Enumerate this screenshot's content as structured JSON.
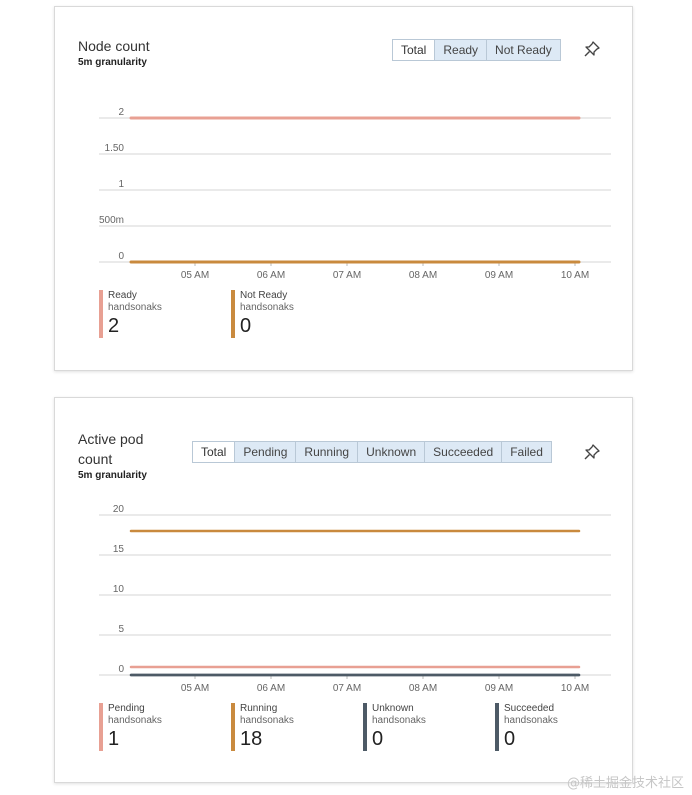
{
  "node_count": {
    "title": "Node count",
    "granularity": "5m granularity",
    "tabs": [
      {
        "label": "Total",
        "active": true
      },
      {
        "label": "Ready",
        "active": false
      },
      {
        "label": "Not Ready",
        "active": false
      }
    ],
    "chart_data": {
      "type": "line",
      "x": [
        "05 AM",
        "06 AM",
        "07 AM",
        "08 AM",
        "09 AM",
        "10 AM"
      ],
      "y_ticks": [
        "2",
        "1.50",
        "1",
        "500m",
        "0"
      ],
      "ylim": [
        0,
        2
      ],
      "series": [
        {
          "name": "Ready",
          "color": "#e8a093",
          "values": [
            2,
            2,
            2,
            2,
            2,
            2
          ]
        },
        {
          "name": "Not Ready",
          "color": "#c98a3e",
          "values": [
            0,
            0,
            0,
            0,
            0,
            0
          ]
        }
      ]
    },
    "legend": [
      {
        "name": "Ready",
        "sub": "handsonaks",
        "value": "2",
        "color": "#e8a093"
      },
      {
        "name": "Not Ready",
        "sub": "handsonaks",
        "value": "0",
        "color": "#c98a3e"
      }
    ]
  },
  "pod_count": {
    "title_line1": "Active pod",
    "title_line2": "count",
    "granularity": "5m granularity",
    "tabs": [
      {
        "label": "Total",
        "active": true
      },
      {
        "label": "Pending",
        "active": false
      },
      {
        "label": "Running",
        "active": false
      },
      {
        "label": "Unknown",
        "active": false
      },
      {
        "label": "Succeeded",
        "active": false
      },
      {
        "label": "Failed",
        "active": false
      }
    ],
    "chart_data": {
      "type": "line",
      "x": [
        "05 AM",
        "06 AM",
        "07 AM",
        "08 AM",
        "09 AM",
        "10 AM"
      ],
      "y_ticks": [
        "20",
        "15",
        "10",
        "5",
        "0"
      ],
      "ylim": [
        0,
        20
      ],
      "series": [
        {
          "name": "Pending",
          "color": "#e8a093",
          "values": [
            1,
            1,
            1,
            1,
            1,
            1
          ]
        },
        {
          "name": "Running",
          "color": "#c98a3e",
          "values": [
            18,
            18,
            18,
            18,
            18,
            18
          ]
        },
        {
          "name": "Unknown",
          "color": "#4d5a66",
          "values": [
            0,
            0,
            0,
            0,
            0,
            0
          ]
        },
        {
          "name": "Succeeded",
          "color": "#4d5a66",
          "values": [
            0,
            0,
            0,
            0,
            0,
            0
          ]
        }
      ]
    },
    "legend": [
      {
        "name": "Pending",
        "sub": "handsonaks",
        "value": "1",
        "color": "#e8a093"
      },
      {
        "name": "Running",
        "sub": "handsonaks",
        "value": "18",
        "color": "#c98a3e"
      },
      {
        "name": "Unknown",
        "sub": "handsonaks",
        "value": "0",
        "color": "#4d5a66"
      },
      {
        "name": "Succeeded",
        "sub": "handsonaks",
        "value": "0",
        "color": "#4d5a66"
      }
    ]
  },
  "watermark": "@稀土掘金技术社区"
}
